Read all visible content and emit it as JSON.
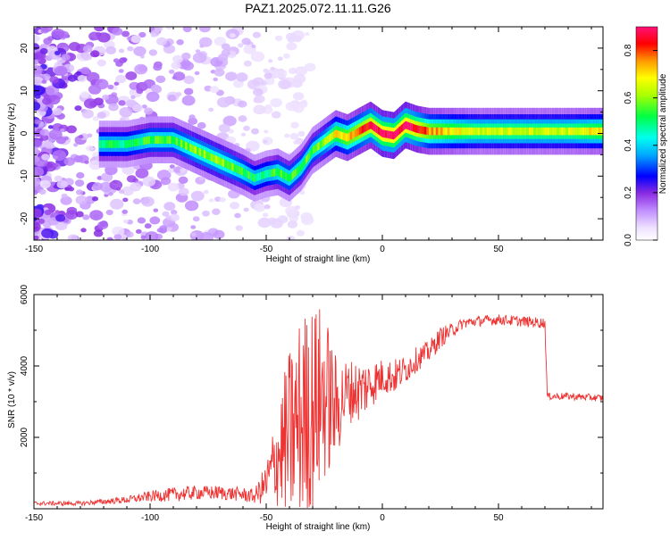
{
  "title": "PAZ1.2025.072.11.11.G26",
  "chart_data": [
    {
      "type": "heatmap",
      "xlabel": "Height of straight line (km)",
      "ylabel": "Frequency (Hz)",
      "xlim": [
        -150,
        95
      ],
      "ylim": [
        -25,
        25
      ],
      "xticks": [
        "-150",
        "-100",
        "-50",
        "0",
        "50"
      ],
      "yticks": [
        "-20",
        "-10",
        "0",
        "10",
        "20"
      ],
      "colorbar": {
        "label": "Normalized spectral amplitude",
        "range": [
          0.0,
          0.9
        ],
        "ticks": [
          "0.0",
          "0.2",
          "0.4",
          "0.6",
          "0.8"
        ]
      },
      "ridge": {
        "x": [
          -122,
          -110,
          -100,
          -90,
          -80,
          -70,
          -60,
          -55,
          -50,
          -45,
          -40,
          -35,
          -30,
          -25,
          -20,
          -15,
          -10,
          -5,
          0,
          5,
          10,
          15,
          20,
          30,
          40,
          50,
          60,
          70,
          80,
          95
        ],
        "y": [
          -2.5,
          -2.5,
          -1.5,
          -1.5,
          -4,
          -6.5,
          -9,
          -10.5,
          -9.5,
          -9,
          -10.5,
          -8,
          -4,
          -2,
          0,
          -1,
          0.5,
          2,
          0,
          -0.5,
          2,
          1,
          0.5,
          0.5,
          0.5,
          0.5,
          0.5,
          0.5,
          0.5,
          0.5
        ],
        "amplitude": [
          0.45,
          0.45,
          0.5,
          0.5,
          0.55,
          0.55,
          0.5,
          0.45,
          0.45,
          0.5,
          0.5,
          0.5,
          0.5,
          0.55,
          0.65,
          0.7,
          0.75,
          0.8,
          0.85,
          0.85,
          0.85,
          0.8,
          0.7,
          0.65,
          0.6,
          0.6,
          0.6,
          0.6,
          0.6,
          0.65
        ]
      }
    },
    {
      "type": "line",
      "xlabel": "Height of straight line (km)",
      "ylabel": "SNR (10 * v/v)",
      "xlim": [
        -150,
        95
      ],
      "ylim": [
        0,
        6000
      ],
      "xticks": [
        "-150",
        "-100",
        "-50",
        "0",
        "50"
      ],
      "yticks": [
        "2000",
        "4000",
        "6000"
      ],
      "color": "#ee3333",
      "series": [
        {
          "x": [
            -150,
            -140,
            -130,
            -120,
            -110,
            -100,
            -90,
            -80,
            -70,
            -60,
            -55,
            -50,
            -45,
            -40,
            -35,
            -30,
            -25,
            -20,
            -15,
            -10,
            -5,
            0,
            5,
            10,
            15,
            20,
            25,
            30,
            35,
            40,
            50,
            60,
            70,
            71,
            80,
            95
          ],
          "y": [
            150,
            150,
            150,
            200,
            250,
            350,
            400,
            450,
            450,
            400,
            350,
            700,
            1500,
            2000,
            2500,
            2800,
            3200,
            2800,
            3300,
            3300,
            3500,
            3700,
            3700,
            3900,
            4200,
            4400,
            4800,
            5000,
            5200,
            5250,
            5300,
            5250,
            5200,
            3150,
            3150,
            3100
          ]
        }
      ],
      "spread": [
        60,
        60,
        60,
        80,
        100,
        150,
        200,
        200,
        200,
        200,
        200,
        600,
        1500,
        2500,
        3000,
        3000,
        2500,
        1500,
        900,
        900,
        700,
        500,
        500,
        400,
        350,
        300,
        300,
        200,
        150,
        150,
        150,
        150,
        150,
        100,
        100,
        100
      ]
    }
  ]
}
